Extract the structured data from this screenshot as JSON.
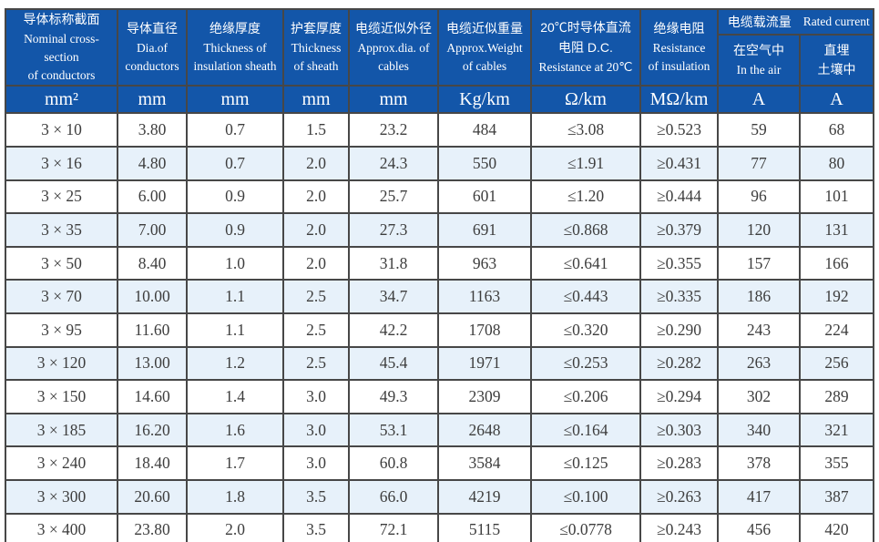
{
  "colors": {
    "header_bg": "#1356a9",
    "header_text": "#ffffff",
    "row_alt_bg": "#e7f1fa",
    "grid_line": "#474747",
    "body_text": "#3d3d3d"
  },
  "chart_data": {
    "type": "table",
    "title": "",
    "columns": [
      {
        "id": "cross-section",
        "lines": [
          "导体标称截面",
          "Nominal cross-section",
          "of conductors"
        ],
        "unit": "mm²"
      },
      {
        "id": "conductor-dia",
        "lines": [
          "导体直径",
          "Dia.of",
          "conductors"
        ],
        "unit": "mm"
      },
      {
        "id": "insulation-thickness",
        "lines": [
          "绝缘厚度",
          "Thickness of",
          "insulation sheath"
        ],
        "unit": "mm"
      },
      {
        "id": "sheath-thickness",
        "lines": [
          "护套厚度",
          "Thickness",
          "of sheath"
        ],
        "unit": "mm"
      },
      {
        "id": "approx-dia",
        "lines": [
          "电缆近似外径",
          "Approx.dia. of",
          "cables"
        ],
        "unit": "mm"
      },
      {
        "id": "approx-weight",
        "lines": [
          "电缆近似重量",
          "Approx.Weight",
          "of cables"
        ],
        "unit": "Kg/km"
      },
      {
        "id": "dc-resistance",
        "lines": [
          "20℃时导体直流",
          "电阻 D.C.",
          "Resistance at 20℃"
        ],
        "unit": "Ω/km"
      },
      {
        "id": "insulation-resistance",
        "lines": [
          "绝缘电阻",
          "Resistance",
          "of insulation"
        ],
        "unit": "MΩ/km"
      }
    ],
    "current_group": {
      "title_zh": "电缆载流量",
      "title_en": "Rated current",
      "sub": [
        {
          "id": "current-in-air",
          "lines": [
            "在空气中",
            "In the air"
          ],
          "unit": "A"
        },
        {
          "id": "current-buried",
          "lines": [
            "直埋",
            "土壤中"
          ],
          "unit": "A"
        }
      ]
    },
    "column_ids": [
      "cross-section",
      "conductor-dia",
      "insulation-thickness",
      "sheath-thickness",
      "approx-dia",
      "approx-weight",
      "dc-resistance",
      "insulation-resistance",
      "current-in-air",
      "current-buried"
    ],
    "rows": [
      [
        "3 × 10",
        "3.80",
        "0.7",
        "1.5",
        "23.2",
        "484",
        "≤3.08",
        "≥0.523",
        "59",
        "68"
      ],
      [
        "3 × 16",
        "4.80",
        "0.7",
        "2.0",
        "24.3",
        "550",
        "≤1.91",
        "≥0.431",
        "77",
        "80"
      ],
      [
        "3 × 25",
        "6.00",
        "0.9",
        "2.0",
        "25.7",
        "601",
        "≤1.20",
        "≥0.444",
        "96",
        "101"
      ],
      [
        "3 × 35",
        "7.00",
        "0.9",
        "2.0",
        "27.3",
        "691",
        "≤0.868",
        "≥0.379",
        "120",
        "131"
      ],
      [
        "3 × 50",
        "8.40",
        "1.0",
        "2.0",
        "31.8",
        "963",
        "≤0.641",
        "≥0.355",
        "157",
        "166"
      ],
      [
        "3 × 70",
        "10.00",
        "1.1",
        "2.5",
        "34.7",
        "1163",
        "≤0.443",
        "≥0.335",
        "186",
        "192"
      ],
      [
        "3 × 95",
        "11.60",
        "1.1",
        "2.5",
        "42.2",
        "1708",
        "≤0.320",
        "≥0.290",
        "243",
        "224"
      ],
      [
        "3 × 120",
        "13.00",
        "1.2",
        "2.5",
        "45.4",
        "1971",
        "≤0.253",
        "≥0.282",
        "263",
        "256"
      ],
      [
        "3 × 150",
        "14.60",
        "1.4",
        "3.0",
        "49.3",
        "2309",
        "≤0.206",
        "≥0.294",
        "302",
        "289"
      ],
      [
        "3 × 185",
        "16.20",
        "1.6",
        "3.0",
        "53.1",
        "2648",
        "≤0.164",
        "≥0.303",
        "340",
        "321"
      ],
      [
        "3 × 240",
        "18.40",
        "1.7",
        "3.0",
        "60.8",
        "3584",
        "≤0.125",
        "≥0.283",
        "378",
        "355"
      ],
      [
        "3 × 300",
        "20.60",
        "1.8",
        "3.5",
        "66.0",
        "4219",
        "≤0.100",
        "≥0.263",
        "417",
        "387"
      ],
      [
        "3 × 400",
        "23.80",
        "2.0",
        "3.5",
        "72.1",
        "5115",
        "≤0.0778",
        "≥0.243",
        "456",
        "420"
      ]
    ]
  }
}
